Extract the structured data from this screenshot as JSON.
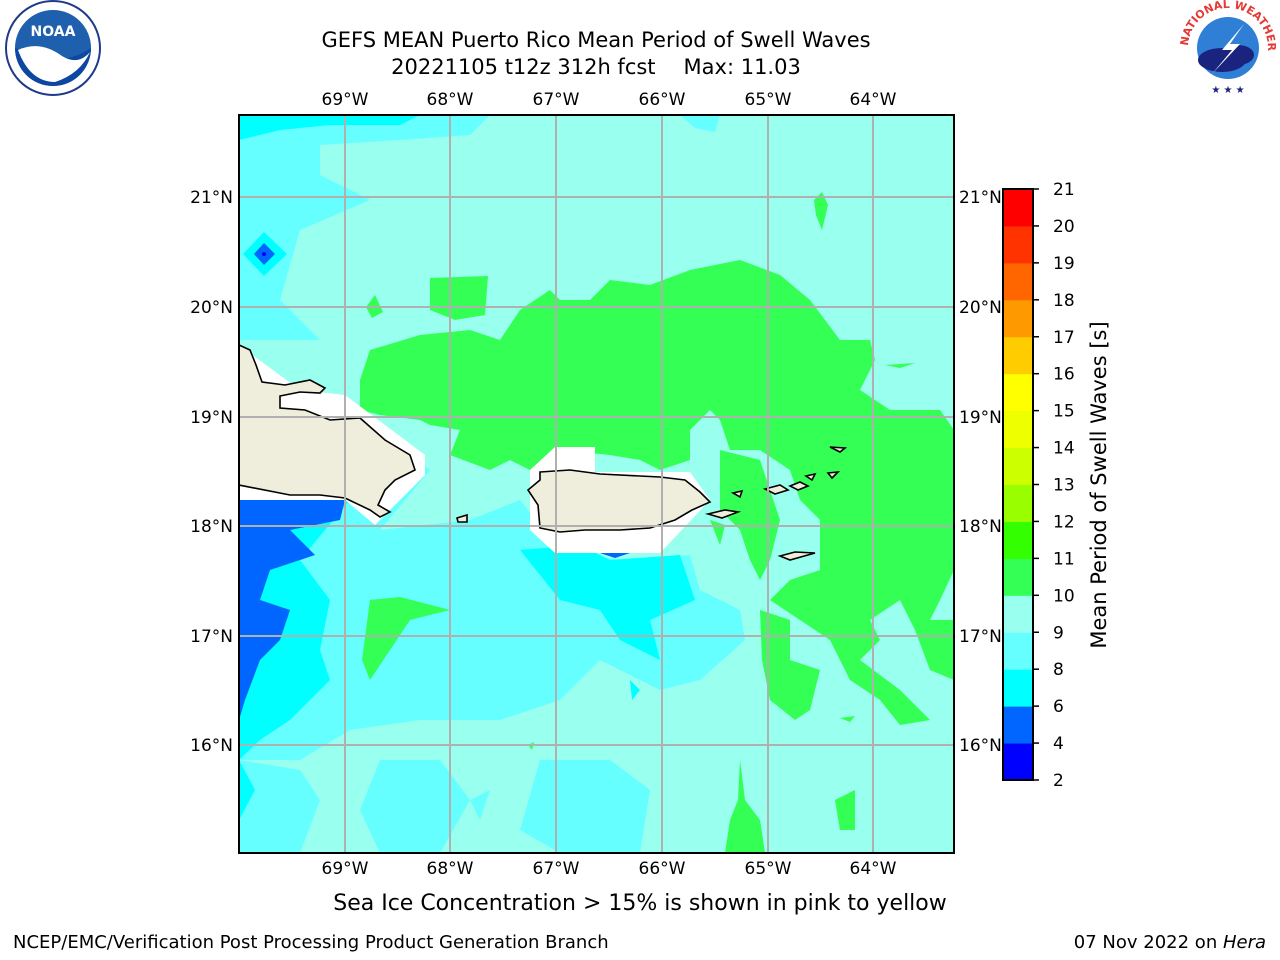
{
  "title": {
    "line1": "GEFS MEAN Puerto Rico Mean Period of Swell Waves",
    "line2_left": "20221105 t12z 312h fcst",
    "line2_right": "Max: 11.03"
  },
  "map": {
    "lon_range": [
      -70,
      -63.25
    ],
    "lat_range": [
      15,
      21.75
    ],
    "lon_ticks": [
      "69°W",
      "68°W",
      "67°W",
      "66°W",
      "65°W",
      "64°W"
    ],
    "lat_ticks": [
      "21°N",
      "20°N",
      "19°N",
      "18°N",
      "17°N",
      "16°N"
    ],
    "grid": true
  },
  "colorbar": {
    "label": "Mean Period of Swell Waves [s]",
    "ticks": [
      "2",
      "4",
      "6",
      "8",
      "9",
      "10",
      "11",
      "12",
      "13",
      "14",
      "15",
      "16",
      "17",
      "18",
      "19",
      "20",
      "21"
    ],
    "colors": [
      "#0000ff",
      "#0066ff",
      "#00ffff",
      "#66ffff",
      "#99ffee",
      "#33ff55",
      "#33ff00",
      "#99ff00",
      "#ccff00",
      "#eeff00",
      "#ffff00",
      "#ffcc00",
      "#ff9900",
      "#ff6600",
      "#ff3300",
      "#ff0000"
    ]
  },
  "chart_data": {
    "type": "heatmap",
    "title": "GEFS MEAN Puerto Rico Mean Period of Swell Waves",
    "subtitle": "20221105 t12z 312h fcst   Max: 11.03",
    "xlabel": "",
    "ylabel": "",
    "colorbar_label": "Mean Period of Swell Waves [s]",
    "value_max": 11.03,
    "levels": [
      2,
      4,
      6,
      8,
      9,
      10,
      11,
      12,
      13,
      14,
      15,
      16,
      17,
      18,
      19,
      20,
      21
    ],
    "xlim": [
      "70°W",
      "63.25°W"
    ],
    "ylim": [
      "15°N",
      "21.75°N"
    ]
  },
  "note": "Sea Ice Concentration > 15% is shown in pink to yellow",
  "footer": {
    "left": "NCEP/EMC/Verification Post Processing Product Generation Branch",
    "right_prefix": "07 Nov 2022 on ",
    "right_host": "Hera"
  },
  "logos": {
    "noaa_text": "NOAA",
    "nws_text": "NATIONAL WEATHER SERVICE"
  }
}
